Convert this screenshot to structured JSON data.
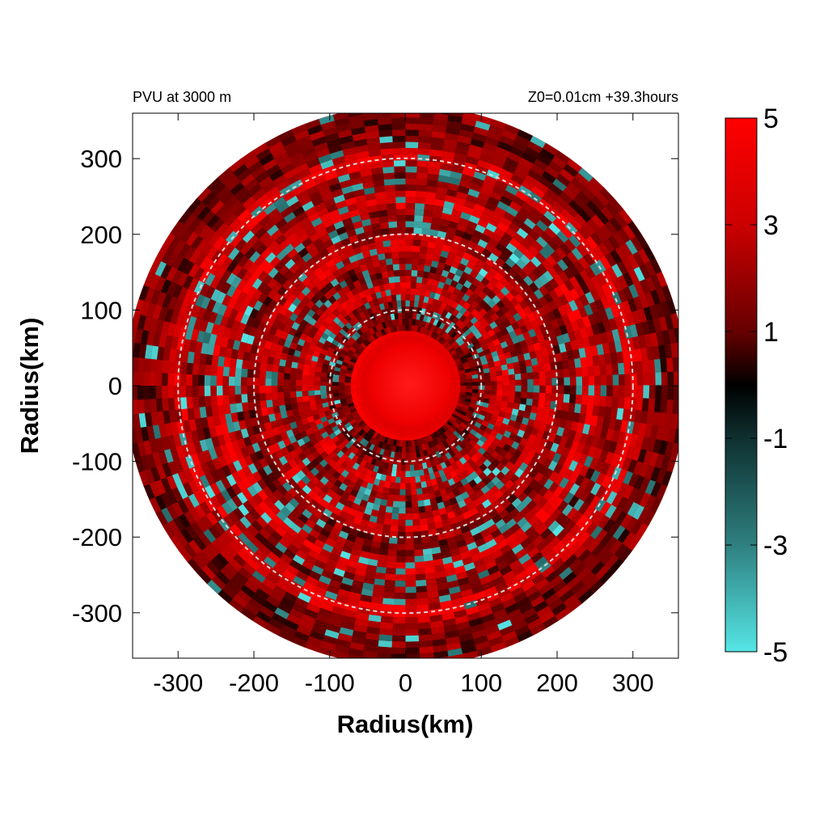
{
  "chart_data": {
    "type": "heatmap",
    "title_left": "PVU at  3000 m",
    "title_right": "Z0=0.01cm  +39.3hours",
    "xlabel": "Radius(km)",
    "ylabel": "Radius(km)",
    "xlim": [
      -360,
      360
    ],
    "ylim": [
      -360,
      360
    ],
    "x_ticks": [
      -300,
      -200,
      -100,
      0,
      100,
      200,
      300
    ],
    "y_ticks": [
      300,
      200,
      100,
      0,
      -100,
      -200,
      -300
    ],
    "x_tick_labels": [
      "-300",
      "-200",
      "-100",
      "0",
      "100",
      "200",
      "300"
    ],
    "y_tick_labels": [
      "300",
      "200",
      "100",
      "0",
      "-100",
      "-200",
      "-300"
    ],
    "domain_radius_km": 370,
    "reference_circles_km": [
      100,
      200,
      300
    ],
    "colorbar": {
      "range": [
        -5,
        5
      ],
      "ticks": [
        5,
        3,
        1,
        -1,
        -3,
        -5
      ],
      "tick_labels": [
        "5",
        "3",
        "1",
        "-1",
        "-3",
        "-5"
      ],
      "colors": {
        "max": "#ff0000",
        "mid_high": "#990000",
        "zero": "#000000",
        "mid_low": "#1e5c5c",
        "min": "#55e5e5"
      }
    },
    "field_summary": {
      "core_value": 5,
      "core_radius_km": 70,
      "background_value": 1.5,
      "rainbands": [
        {
          "radius_km": 130,
          "amplitude": 2.5
        },
        {
          "radius_km": 185,
          "amplitude": 2.5
        },
        {
          "radius_km": 245,
          "amplitude": 3
        },
        {
          "radius_km": 300,
          "amplitude": 3
        }
      ],
      "negative_features": [
        {
          "radius_km": 110,
          "value": -4
        },
        {
          "radius_km": 160,
          "value": -4
        },
        {
          "radius_km": 230,
          "value": -4.5
        },
        {
          "radius_km": 280,
          "value": -4
        }
      ]
    }
  }
}
